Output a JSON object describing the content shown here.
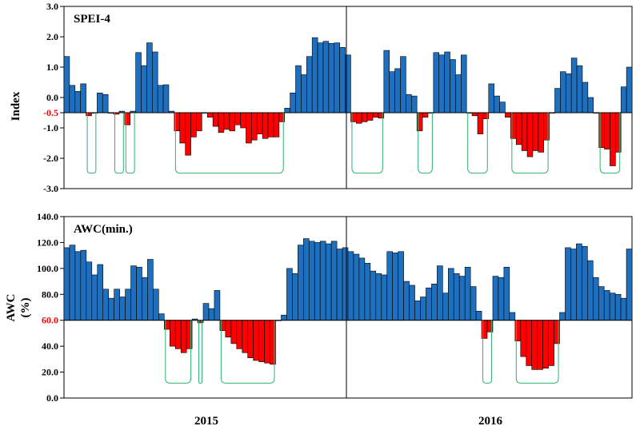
{
  "chart_data": [
    {
      "type": "bar",
      "title": "SPEI-4",
      "ylabel": "Index",
      "ylim": [
        -3.0,
        3.0
      ],
      "baseline": -0.5,
      "yticks": [
        "3.0",
        "2.0",
        "1.0",
        "0.0",
        "-0.5",
        "-1.0",
        "-2.0",
        "-3.0"
      ],
      "ytick_values": [
        3.0,
        2.0,
        1.0,
        0.0,
        -0.5,
        -1.0,
        -2.0,
        -3.0
      ],
      "highlight_tick": "-0.5",
      "colors": {
        "above": "#1f6fbf",
        "below": "#ff0000",
        "drought_line": "#2fb070"
      },
      "values": [
        1.35,
        0.4,
        0.2,
        0.45,
        -0.6,
        -0.5,
        0.15,
        0.1,
        -0.5,
        -0.55,
        -0.45,
        -0.9,
        -0.45,
        1.48,
        1.05,
        1.8,
        1.5,
        0.4,
        0.42,
        -0.45,
        -1.1,
        -1.5,
        -1.9,
        -1.3,
        -1.1,
        -0.5,
        -0.65,
        -0.95,
        -1.15,
        -1.05,
        -1.1,
        -0.9,
        -1.0,
        -1.5,
        -1.4,
        -1.2,
        -1.35,
        -1.3,
        -1.3,
        -0.8,
        -0.35,
        0.15,
        1.05,
        0.75,
        1.35,
        1.97,
        1.8,
        1.85,
        1.78,
        1.8,
        1.65,
        1.4,
        -0.8,
        -0.85,
        -0.8,
        -0.75,
        -0.65,
        -0.68,
        1.55,
        0.85,
        0.95,
        1.35,
        0.1,
        0.05,
        -1.1,
        -0.65,
        -0.5,
        1.48,
        1.4,
        1.5,
        1.25,
        0.75,
        1.4,
        -0.5,
        -0.6,
        -1.2,
        -0.7,
        0.45,
        0.05,
        -0.15,
        -0.65,
        -1.35,
        -1.55,
        -1.75,
        -1.95,
        -1.75,
        -1.8,
        -1.4,
        -0.5,
        0.3,
        0.85,
        0.78,
        1.3,
        1.05,
        0.5,
        0.0,
        -0.5,
        -1.65,
        -1.7,
        -2.25,
        -1.8,
        0.35,
        1.0
      ],
      "drought_periods": [
        [
          4,
          5
        ],
        [
          9,
          10
        ],
        [
          11,
          12
        ],
        [
          20,
          39
        ],
        [
          52,
          57
        ],
        [
          64,
          66
        ],
        [
          73,
          76
        ],
        [
          81,
          87
        ],
        [
          97,
          100
        ]
      ],
      "year_labels": [
        "2015",
        "2016"
      ]
    },
    {
      "type": "bar",
      "title": "AWC(min.)",
      "ylabel": "AWC (%)",
      "ylabel_lines": [
        "AWC",
        "(%)"
      ],
      "ylim": [
        0.0,
        140.0
      ],
      "baseline": 60.0,
      "yticks": [
        "140.0",
        "120.0",
        "100.0",
        "80.0",
        "60.0",
        "40.0",
        "20.0",
        "0.0"
      ],
      "ytick_values": [
        140.0,
        120.0,
        100.0,
        80.0,
        60.0,
        40.0,
        20.0,
        0.0
      ],
      "highlight_tick": "60.0",
      "colors": {
        "above": "#1f6fbf",
        "below": "#ff0000",
        "drought_line": "#2fb070"
      },
      "values": [
        116,
        118,
        113,
        114,
        105,
        95,
        103,
        84,
        77,
        84,
        78,
        84,
        102,
        101,
        93,
        107,
        84,
        65,
        53,
        40,
        38,
        35,
        38,
        61,
        58,
        73,
        69,
        83,
        52,
        47,
        42,
        38,
        35,
        31,
        29,
        28,
        27,
        26,
        60,
        64,
        100,
        96,
        118,
        123,
        121,
        120,
        121,
        119,
        121,
        115,
        116,
        113,
        111,
        108,
        104,
        98,
        96,
        95,
        113,
        112,
        113,
        90,
        87,
        75,
        78,
        85,
        88,
        102,
        81,
        100,
        96,
        94,
        101,
        86,
        67,
        46,
        51,
        94,
        93,
        101,
        66,
        44,
        32,
        25,
        22,
        22,
        23,
        25,
        42,
        66,
        116,
        115,
        119,
        117,
        106,
        93,
        86,
        83,
        81,
        80,
        77,
        115
      ],
      "drought_periods": [
        [
          18,
          22
        ],
        [
          24,
          24
        ],
        [
          28,
          37
        ],
        [
          75,
          76
        ],
        [
          81,
          88
        ]
      ],
      "year_labels": [
        "2015",
        "2016"
      ]
    }
  ]
}
